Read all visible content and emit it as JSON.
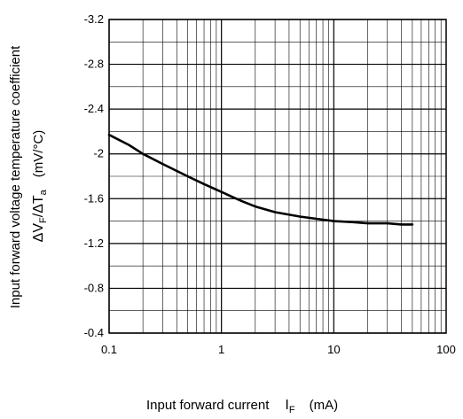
{
  "chart_data": {
    "type": "line",
    "title": "",
    "x_scale": "log",
    "xlim": [
      0.1,
      100
    ],
    "ylim": [
      -3.2,
      -0.4
    ],
    "y_axis_inverted": true,
    "grid": true,
    "legend": "none",
    "x_major_ticks": [
      0.1,
      1,
      10,
      100
    ],
    "x_tick_labels": [
      "0.1",
      "1",
      "10",
      "100"
    ],
    "y_ticks": [
      -3.2,
      -2.8,
      -2.4,
      -2.0,
      -1.6,
      -1.2,
      -0.8,
      -0.4
    ],
    "y_tick_labels": [
      "-3.2",
      "-2.8",
      "-2.4",
      "-2",
      "-1.6",
      "-1.2",
      "-0.8",
      "-0.4"
    ],
    "xlabel": {
      "text": "Input forward current",
      "symbol": "I",
      "symbol_sub": "F",
      "unit": "(mA)"
    },
    "ylabel": {
      "line1": "Input forward voltage temperature coefficient",
      "symbol": "ΔV",
      "symbol_sub": "F",
      "slash": "/ΔT",
      "slash_sub": "a",
      "unit": "(mV/°C)"
    },
    "series": [
      {
        "color": "#000000",
        "x": [
          0.1,
          0.15,
          0.2,
          0.3,
          0.5,
          0.7,
          1,
          1.5,
          2,
          3,
          5,
          7,
          10,
          15,
          20,
          30,
          40,
          50
        ],
        "y": [
          -2.17,
          -2.08,
          -2.0,
          -1.91,
          -1.8,
          -1.73,
          -1.66,
          -1.58,
          -1.53,
          -1.48,
          -1.44,
          -1.42,
          -1.4,
          -1.39,
          -1.38,
          -1.38,
          -1.37,
          -1.37
        ]
      }
    ]
  }
}
